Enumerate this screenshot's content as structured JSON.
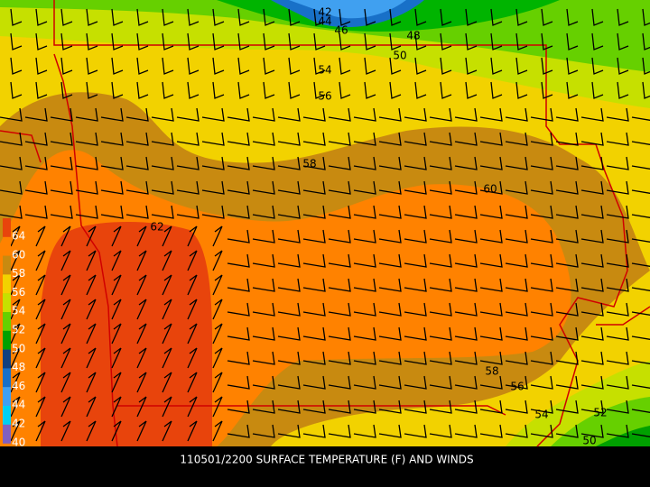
{
  "title": "110501/2200 SURFACE TEMPERATURE (F) AND WINDS",
  "colorbar": {
    "labels": [
      64,
      60,
      58,
      56,
      54,
      52,
      50,
      48,
      46,
      44,
      42,
      40
    ]
  },
  "contour_labels": [
    42,
    44,
    46,
    48,
    50,
    54,
    56,
    58,
    60,
    62,
    58,
    56,
    54,
    52,
    50
  ]
}
